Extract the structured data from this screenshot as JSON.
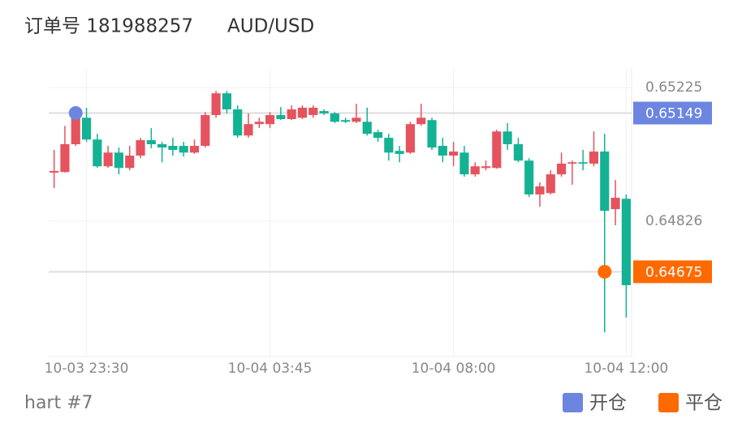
{
  "chart_data": {
    "type": "candlestick",
    "title": "订单号 181988257",
    "symbol": "AUD/USD",
    "footer": "hart #7",
    "categories": [
      null,
      null,
      null,
      "10-03 23:30",
      null,
      null,
      null,
      null,
      null,
      null,
      null,
      null,
      null,
      null,
      null,
      null,
      null,
      null,
      null,
      null,
      "10-04 03:45",
      null,
      null,
      null,
      null,
      null,
      null,
      null,
      null,
      null,
      null,
      null,
      null,
      null,
      null,
      null,
      null,
      "10-04 08:00",
      null,
      null,
      null,
      null,
      null,
      null,
      null,
      null,
      null,
      null,
      null,
      null,
      null,
      null,
      null,
      "10-04 12:00"
    ],
    "open": [
      0.64971,
      0.64973,
      0.65056,
      0.65135,
      0.6507,
      0.6499,
      0.65031,
      0.64985,
      0.65022,
      0.65068,
      0.65056,
      0.65051,
      0.65051,
      0.65031,
      0.65051,
      0.65143,
      0.65208,
      0.6516,
      0.65082,
      0.65116,
      0.65116,
      0.65143,
      0.65131,
      0.65135,
      0.65143,
      0.65155,
      0.65148,
      0.65128,
      0.65123,
      0.65123,
      0.65092,
      0.65075,
      0.65036,
      0.65031,
      0.65116,
      0.65128,
      0.65051,
      0.65022,
      0.65031,
      0.64966,
      0.64985,
      0.64985,
      0.65094,
      0.65056,
      0.65007,
      0.64906,
      0.6491,
      0.64966,
      0.64998,
      0.65002,
      0.64998,
      0.65034,
      0.64862,
      0.64893
    ],
    "high": [
      0.65039,
      0.65111,
      0.65148,
      0.65165,
      0.65087,
      0.65051,
      0.65046,
      0.65051,
      0.65075,
      0.65104,
      0.65063,
      0.65075,
      0.65063,
      0.6507,
      0.65152,
      0.65215,
      0.65215,
      0.65172,
      0.65148,
      0.65135,
      0.65152,
      0.65167,
      0.65172,
      0.65172,
      0.65172,
      0.6516,
      0.65152,
      0.65135,
      0.65177,
      0.65165,
      0.65099,
      0.65087,
      0.65051,
      0.65123,
      0.65177,
      0.65135,
      0.65075,
      0.65063,
      0.65051,
      0.65002,
      0.65007,
      0.65099,
      0.65119,
      0.65075,
      0.65014,
      0.64942,
      0.64978,
      0.65031,
      0.65007,
      0.65039,
      0.65094,
      0.65087,
      0.64949,
      0.64906
    ],
    "low": [
      0.64925,
      0.64971,
      0.65051,
      0.65063,
      0.64985,
      0.64985,
      0.64966,
      0.64978,
      0.65014,
      0.65044,
      0.65002,
      0.65022,
      0.65019,
      0.65027,
      0.65046,
      0.65135,
      0.65148,
      0.65075,
      0.65075,
      0.65104,
      0.65104,
      0.65128,
      0.65128,
      0.65131,
      0.65135,
      0.65143,
      0.65119,
      0.65119,
      0.65119,
      0.65082,
      0.65063,
      0.65007,
      0.65002,
      0.65027,
      0.65111,
      0.65039,
      0.65002,
      0.6499,
      0.64959,
      0.64959,
      0.64978,
      0.64983,
      0.65039,
      0.65002,
      0.64898,
      0.64869,
      0.64906,
      0.64959,
      0.64935,
      0.64978,
      0.6499,
      0.64494,
      0.64814,
      0.64538
    ],
    "close": [
      0.64976,
      0.65056,
      0.65135,
      0.6507,
      0.6499,
      0.65031,
      0.64985,
      0.65022,
      0.65068,
      0.65056,
      0.65046,
      0.65039,
      0.65031,
      0.65051,
      0.65143,
      0.65208,
      0.6516,
      0.65082,
      0.65116,
      0.65123,
      0.65143,
      0.65131,
      0.6516,
      0.65165,
      0.65165,
      0.65148,
      0.65123,
      0.65123,
      0.65135,
      0.65087,
      0.65075,
      0.65031,
      0.65027,
      0.65116,
      0.65135,
      0.65046,
      0.65022,
      0.65034,
      0.64966,
      0.6499,
      0.6499,
      0.65094,
      0.65056,
      0.65007,
      0.64906,
      0.6493,
      0.64966,
      0.64998,
      0.65002,
      0.64998,
      0.65034,
      0.64857,
      0.64896,
      0.64635
    ],
    "up_color": "#e5535f",
    "down_color": "#14b294",
    "ylim": [
      0.64422,
      0.65281
    ],
    "yticks": [
      0.64826,
      0.65225
    ],
    "grid": true,
    "markers": [
      {
        "name": "开仓",
        "color": "#6b85e0",
        "x": 2,
        "value": 0.65149
      },
      {
        "name": "平仓",
        "color": "#ff6a00",
        "x": 51,
        "value": 0.64675
      }
    ]
  }
}
